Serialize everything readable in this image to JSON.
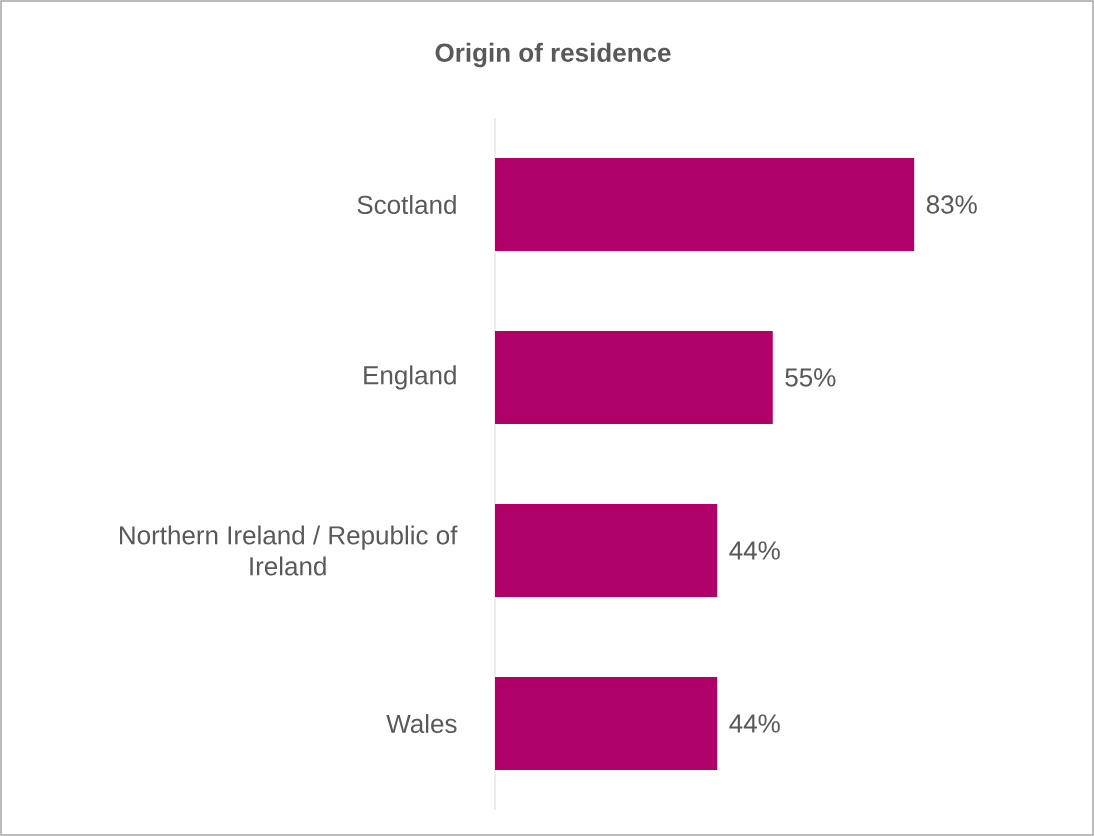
{
  "chart_data": {
    "type": "bar",
    "orientation": "horizontal",
    "title": "Origin of residence",
    "categories": [
      "Scotland",
      "England",
      "Northern Ireland / Republic of Ireland",
      "Wales"
    ],
    "values": [
      83,
      55,
      44,
      44
    ],
    "value_labels": [
      "83%",
      "55%",
      "44%",
      "44%"
    ],
    "color": "#b00068"
  }
}
